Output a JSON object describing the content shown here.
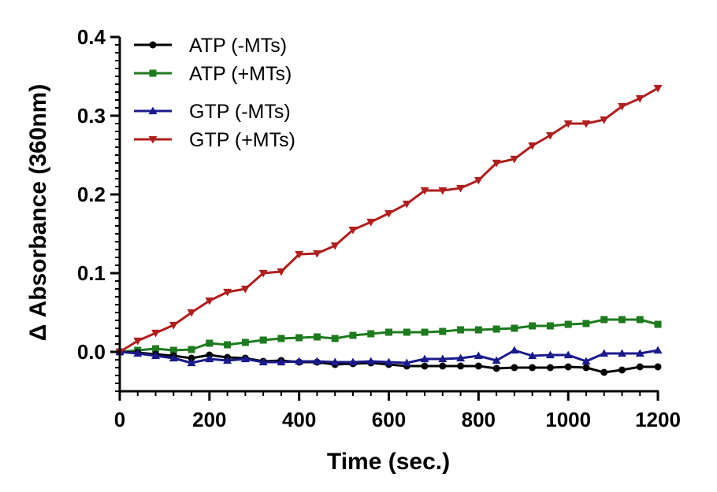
{
  "chart_data": {
    "type": "line",
    "title": "",
    "xlabel": "Time (sec.)",
    "ylabel": "Δ Absorbance (360nm)",
    "xlim": [
      0,
      1200
    ],
    "ylim": [
      -0.05,
      0.4
    ],
    "xticks": [
      0,
      200,
      400,
      600,
      800,
      1000,
      1200
    ],
    "xtick_labels": [
      "0",
      "200",
      "400",
      "600",
      "800",
      "1000",
      "1200"
    ],
    "yticks": [
      0.0,
      0.1,
      0.2,
      0.3,
      0.4
    ],
    "ytick_labels": [
      "0.0",
      "0.1",
      "0.2",
      "0.3",
      "0.4"
    ],
    "grid": false,
    "legend_position": "top-left",
    "x": [
      0,
      40,
      80,
      120,
      160,
      200,
      240,
      280,
      320,
      360,
      400,
      440,
      480,
      520,
      560,
      600,
      640,
      680,
      720,
      760,
      800,
      840,
      880,
      920,
      960,
      1000,
      1040,
      1080,
      1120,
      1160,
      1200
    ],
    "series": [
      {
        "name": "ATP (-MTs)",
        "color": "#000000",
        "marker": "circle",
        "values": [
          0.0,
          -0.001,
          -0.003,
          -0.005,
          -0.008,
          -0.004,
          -0.007,
          -0.008,
          -0.012,
          -0.011,
          -0.013,
          -0.013,
          -0.016,
          -0.015,
          -0.014,
          -0.016,
          -0.018,
          -0.018,
          -0.018,
          -0.018,
          -0.018,
          -0.021,
          -0.02,
          -0.02,
          -0.02,
          -0.019,
          -0.02,
          -0.026,
          -0.023,
          -0.019,
          -0.019
        ]
      },
      {
        "name": "ATP (+MTs)",
        "color": "#1e7a1e",
        "marker": "square",
        "values": [
          0.0,
          0.002,
          0.004,
          0.002,
          0.003,
          0.011,
          0.009,
          0.012,
          0.015,
          0.017,
          0.018,
          0.019,
          0.017,
          0.021,
          0.023,
          0.025,
          0.025,
          0.025,
          0.026,
          0.028,
          0.028,
          0.029,
          0.03,
          0.033,
          0.033,
          0.035,
          0.036,
          0.041,
          0.041,
          0.041,
          0.035
        ]
      },
      {
        "name": "GTP (-MTs)",
        "color": "#1a1a8c",
        "marker": "triangle-up",
        "values": [
          0.0,
          -0.002,
          -0.005,
          -0.008,
          -0.014,
          -0.009,
          -0.011,
          -0.009,
          -0.013,
          -0.013,
          -0.012,
          -0.012,
          -0.013,
          -0.013,
          -0.012,
          -0.013,
          -0.014,
          -0.009,
          -0.009,
          -0.008,
          -0.005,
          -0.011,
          0.002,
          -0.005,
          -0.004,
          -0.004,
          -0.012,
          -0.002,
          -0.002,
          -0.002,
          0.002
        ]
      },
      {
        "name": "GTP (+MTs)",
        "color": "#b01e1e",
        "marker": "triangle-down",
        "values": [
          0.0,
          0.014,
          0.024,
          0.034,
          0.05,
          0.065,
          0.076,
          0.08,
          0.1,
          0.102,
          0.124,
          0.125,
          0.135,
          0.155,
          0.165,
          0.176,
          0.188,
          0.205,
          0.205,
          0.208,
          0.218,
          0.24,
          0.245,
          0.262,
          0.275,
          0.29,
          0.29,
          0.295,
          0.312,
          0.322,
          0.335
        ]
      }
    ]
  }
}
